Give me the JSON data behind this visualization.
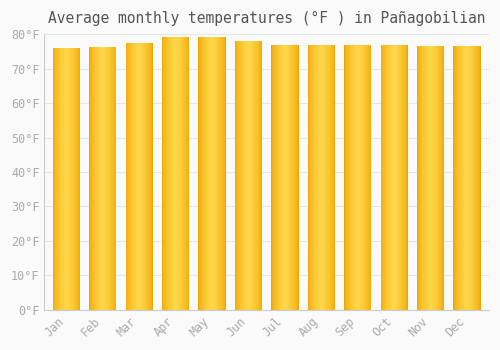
{
  "title": "Average monthly temperatures (°F ) in Pañagobilian",
  "months": [
    "Jan",
    "Feb",
    "Mar",
    "Apr",
    "May",
    "Jun",
    "Jul",
    "Aug",
    "Sep",
    "Oct",
    "Nov",
    "Dec"
  ],
  "values": [
    76.1,
    76.3,
    77.4,
    79.2,
    79.3,
    78.1,
    76.8,
    76.8,
    76.8,
    77.0,
    76.5,
    76.5
  ],
  "bar_color_edge": "#F0A500",
  "bar_color_center": "#FFD84D",
  "background_color": "#FAFAFA",
  "grid_color": "#E0E8EE",
  "text_color": "#AAAAAA",
  "axis_color": "#CCCCCC",
  "ylim": [
    0,
    80
  ],
  "yticks": [
    0,
    10,
    20,
    30,
    40,
    50,
    60,
    70,
    80
  ],
  "ytick_labels": [
    "0°F",
    "10°F",
    "20°F",
    "30°F",
    "40°F",
    "50°F",
    "60°F",
    "70°F",
    "80°F"
  ],
  "title_fontsize": 10.5,
  "tick_fontsize": 8.5
}
